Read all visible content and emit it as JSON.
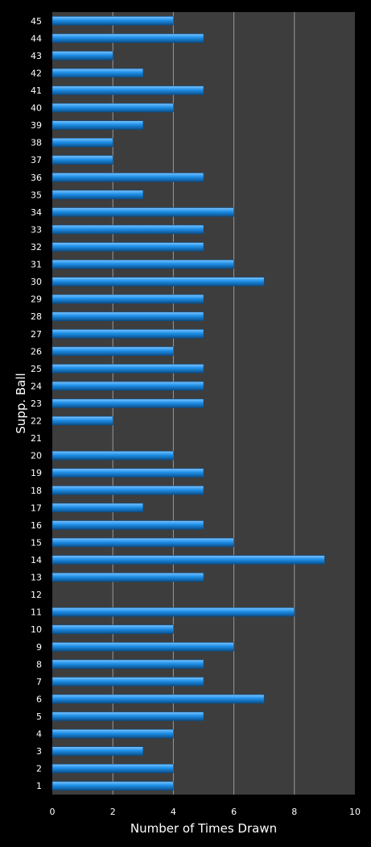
{
  "chart_data": {
    "type": "bar",
    "orientation": "horizontal",
    "title": "",
    "xlabel": "Number of Times Drawn",
    "ylabel": "Supp. Ball",
    "xlim": [
      0,
      10
    ],
    "xticks": [
      0,
      2,
      4,
      6,
      8,
      10
    ],
    "grid": "vertical",
    "legend": "none",
    "categories": [
      "1",
      "2",
      "3",
      "4",
      "5",
      "6",
      "7",
      "8",
      "9",
      "10",
      "11",
      "12",
      "13",
      "14",
      "15",
      "16",
      "17",
      "18",
      "19",
      "20",
      "21",
      "22",
      "23",
      "24",
      "25",
      "26",
      "27",
      "28",
      "29",
      "30",
      "31",
      "32",
      "33",
      "34",
      "35",
      "36",
      "37",
      "38",
      "39",
      "40",
      "41",
      "42",
      "43",
      "44",
      "45"
    ],
    "values": [
      4,
      4,
      3,
      4,
      5,
      7,
      5,
      5,
      6,
      4,
      8,
      0,
      5,
      9,
      6,
      5,
      3,
      5,
      5,
      4,
      0,
      2,
      5,
      5,
      5,
      4,
      5,
      5,
      5,
      7,
      6,
      5,
      5,
      6,
      3,
      5,
      2,
      2,
      3,
      4,
      5,
      3,
      2,
      5,
      4
    ],
    "colors": {
      "background": "#000000",
      "plot_area": "#3d3d3d",
      "bar": "#1e8fe8",
      "bar_highlight": "#7cc4ff",
      "bar_shadow": "#0b4f8a",
      "gridline": "#9a9a9a",
      "text": "#ffffff"
    }
  }
}
